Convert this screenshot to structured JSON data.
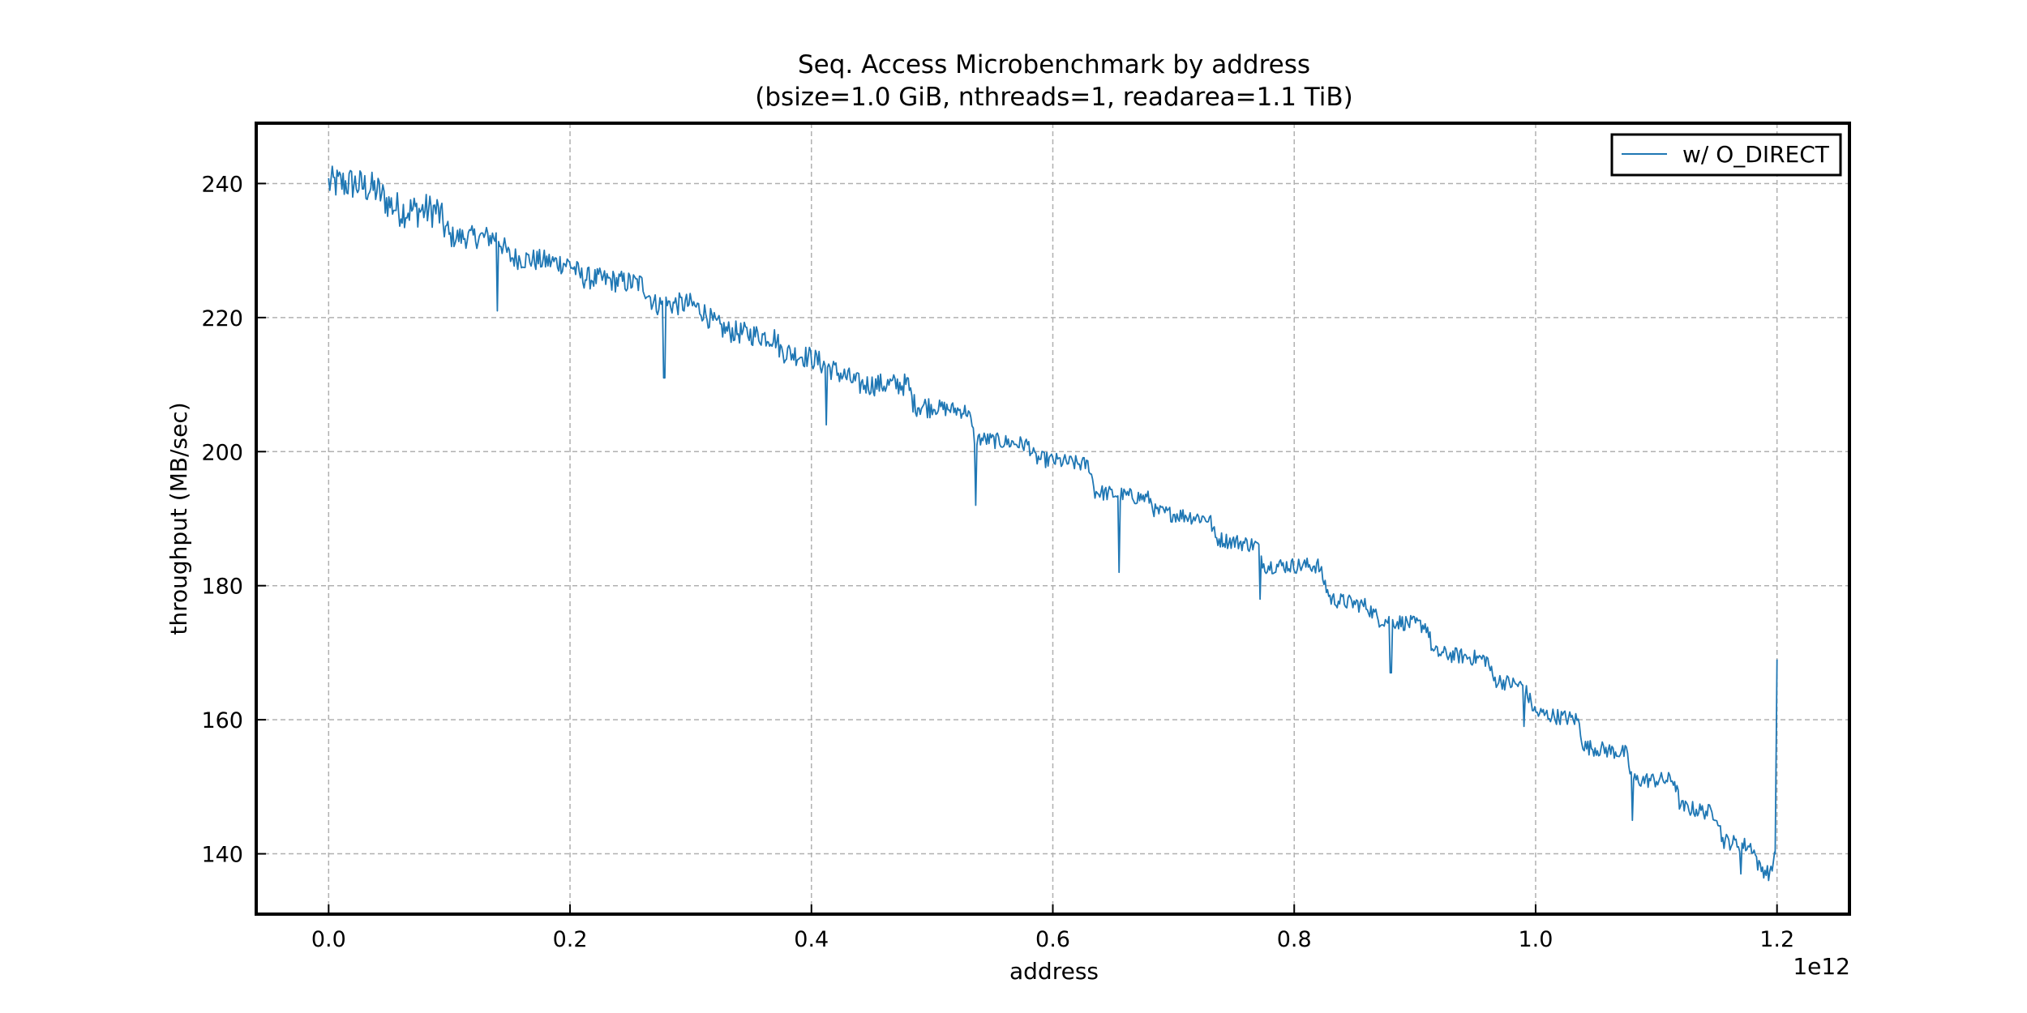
{
  "chart_data": {
    "type": "line",
    "title_line1": "Seq. Access Microbenchmark by address",
    "title_line2": "(bsize=1.0 GiB, nthreads=1, readarea=1.1 TiB)",
    "xlabel": "address",
    "ylabel": "throughput (MB/sec)",
    "x_offset_text": "1e12",
    "x_scale": 1000000000000.0,
    "xlim": [
      -0.06,
      1.26
    ],
    "ylim": [
      131,
      249
    ],
    "xticks": [
      0.0,
      0.2,
      0.4,
      0.6,
      0.8,
      1.0,
      1.2
    ],
    "xtick_labels": [
      "0.0",
      "0.2",
      "0.4",
      "0.6",
      "0.8",
      "1.0",
      "1.2"
    ],
    "yticks": [
      140,
      160,
      180,
      200,
      220,
      240
    ],
    "ytick_labels": [
      "140",
      "160",
      "180",
      "200",
      "220",
      "240"
    ],
    "grid": true,
    "legend_position": "top-right",
    "colors": {
      "series": "#1f77b4",
      "grid": "#b0b0b0"
    },
    "series": [
      {
        "name": "w/ O_DIRECT",
        "x": [
          0.0,
          0.02,
          0.04,
          0.05,
          0.06,
          0.09,
          0.1,
          0.14,
          0.15,
          0.2,
          0.21,
          0.26,
          0.27,
          0.3,
          0.31,
          0.32,
          0.33,
          0.37,
          0.375,
          0.4,
          0.41,
          0.43,
          0.44,
          0.48,
          0.485,
          0.53,
          0.535,
          0.58,
          0.585,
          0.63,
          0.635,
          0.68,
          0.685,
          0.73,
          0.735,
          0.77,
          0.775,
          0.82,
          0.83,
          0.86,
          0.87,
          0.91,
          0.915,
          0.96,
          0.965,
          0.99,
          1.0,
          1.035,
          1.04,
          1.075,
          1.08,
          1.115,
          1.12,
          1.15,
          1.155,
          1.18,
          1.185,
          1.195,
          1.198,
          1.2
        ],
        "y": [
          240,
          240,
          239,
          237,
          236,
          236,
          232,
          232,
          229,
          228,
          226,
          225,
          222,
          222,
          221,
          219,
          218,
          217,
          215,
          214,
          213,
          211,
          210,
          210,
          207,
          206,
          202,
          201,
          199,
          198,
          194,
          193,
          191,
          190,
          187,
          186,
          183,
          183,
          178,
          177,
          175,
          174,
          170,
          169,
          166,
          165,
          161,
          160,
          156,
          155,
          151,
          151,
          147,
          146,
          142,
          141,
          138,
          137,
          140,
          169
        ],
        "dips": [
          {
            "x": 0.14,
            "y": 221
          },
          {
            "x": 0.278,
            "y": 211
          },
          {
            "x": 0.412,
            "y": 204
          },
          {
            "x": 0.536,
            "y": 192
          },
          {
            "x": 0.655,
            "y": 182
          },
          {
            "x": 0.772,
            "y": 178
          },
          {
            "x": 0.88,
            "y": 167
          },
          {
            "x": 0.99,
            "y": 159
          },
          {
            "x": 1.08,
            "y": 145
          },
          {
            "x": 1.17,
            "y": 137
          }
        ]
      }
    ]
  }
}
